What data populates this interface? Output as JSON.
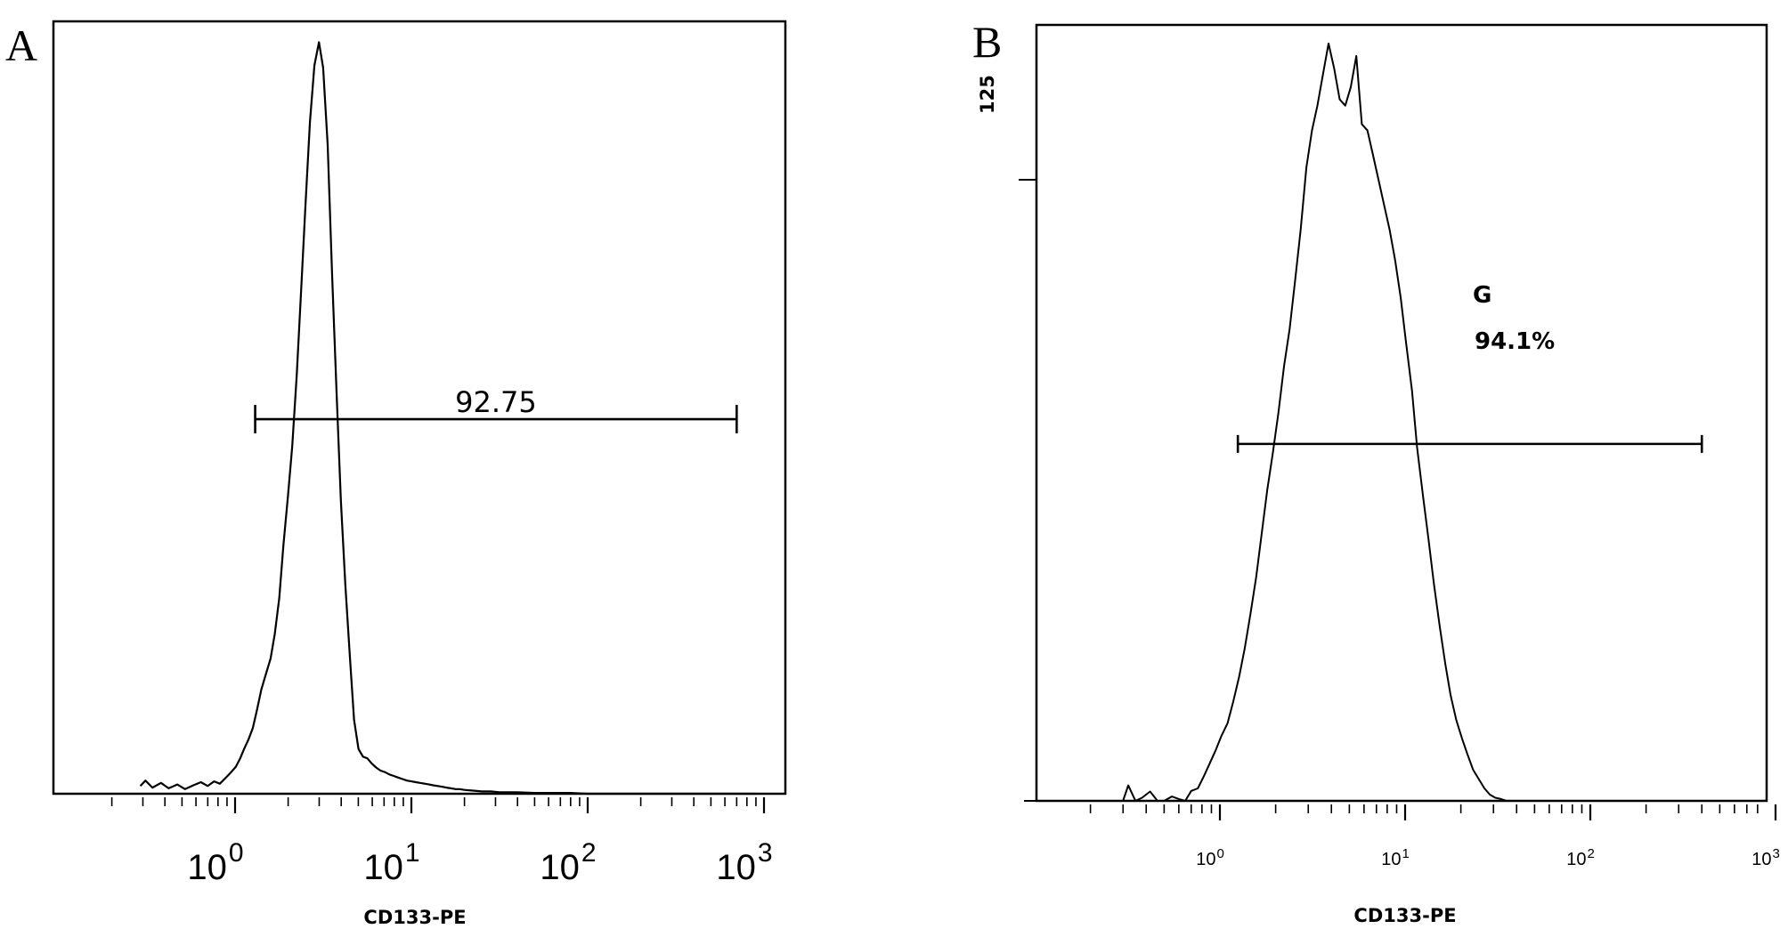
{
  "chart_data": [
    {
      "type": "line",
      "panel": "A",
      "title": "",
      "xlabel": "CD133-PE",
      "ylabel": "",
      "xscale": "log",
      "xlim": [
        0.1,
        1000
      ],
      "x_ticks": [
        1,
        10,
        100,
        1000
      ],
      "x_tick_labels": [
        {
          "base": "10",
          "exp": "0"
        },
        {
          "base": "10",
          "exp": "1"
        },
        {
          "base": "10",
          "exp": "2"
        },
        {
          "base": "10",
          "exp": "3"
        }
      ],
      "ylim": [
        0,
        100
      ],
      "y_tick_labels": [],
      "grid": false,
      "legend": "none",
      "series": [
        {
          "x": [
            0.29,
            0.31,
            0.34,
            0.38,
            0.42,
            0.47,
            0.52,
            0.58,
            0.64,
            0.7,
            0.76,
            0.82,
            0.88,
            0.95,
            1.01,
            1.07,
            1.13,
            1.19,
            1.26,
            1.33,
            1.41,
            1.5,
            1.59,
            1.68,
            1.78,
            1.88,
            2.0,
            2.11,
            2.24,
            2.37,
            2.51,
            2.66,
            2.82,
            2.99,
            3.16,
            3.35,
            3.55,
            3.76,
            3.98,
            4.22,
            4.47,
            4.73,
            5.01,
            5.31,
            5.62,
            5.96,
            6.31,
            6.68,
            7.08,
            7.5,
            7.94,
            8.41,
            8.91,
            9.44,
            10.0,
            10.6,
            11.2,
            11.9,
            12.6,
            13.3,
            14.1,
            15.0,
            15.8,
            16.8,
            17.8,
            18.8,
            20.0,
            22.4,
            25.1,
            28.2,
            31.6,
            40,
            50,
            63,
            80,
            100,
            200,
            400,
            900
          ],
          "y": [
            1.0,
            1.7,
            0.8,
            1.4,
            0.7,
            1.2,
            0.6,
            1.1,
            1.5,
            1.0,
            1.6,
            1.3,
            2.0,
            2.8,
            3.5,
            4.6,
            5.9,
            7.0,
            8.5,
            10.8,
            13.5,
            15.6,
            17.5,
            20.7,
            25.3,
            32.2,
            38.8,
            45.0,
            54.3,
            65.2,
            76.3,
            87.0,
            94.3,
            97.3,
            94.0,
            84.0,
            67.4,
            52.2,
            38.0,
            27.1,
            18.0,
            9.6,
            5.8,
            4.8,
            4.6,
            3.9,
            3.4,
            3.0,
            2.8,
            2.5,
            2.3,
            2.1,
            1.9,
            1.7,
            1.6,
            1.5,
            1.4,
            1.3,
            1.2,
            1.1,
            1.0,
            0.9,
            0.8,
            0.7,
            0.6,
            0.6,
            0.5,
            0.4,
            0.3,
            0.3,
            0.2,
            0.2,
            0.1,
            0.1,
            0.1,
            0,
            0,
            0,
            0
          ]
        }
      ],
      "annotations": [
        {
          "type": "gate",
          "x1": 1.3,
          "x2": 700,
          "y": 48.5,
          "label": "92.75"
        }
      ]
    },
    {
      "type": "line",
      "panel": "B",
      "title": "",
      "xlabel": "CD133-PE",
      "ylabel": "",
      "xscale": "log",
      "xlim": [
        0.1,
        1000
      ],
      "x_ticks": [
        1,
        10,
        100,
        1000
      ],
      "x_tick_labels": [
        {
          "base": "10",
          "exp": "0"
        },
        {
          "base": "10",
          "exp": "1"
        },
        {
          "base": "10",
          "exp": "2"
        },
        {
          "base": "10",
          "exp": "3"
        }
      ],
      "ylim": [
        0,
        125
      ],
      "y_tick_labels": [
        "125"
      ],
      "grid": false,
      "legend": "none",
      "series": [
        {
          "x": [
            0.3,
            0.32,
            0.35,
            0.38,
            0.42,
            0.46,
            0.5,
            0.55,
            0.6,
            0.65,
            0.7,
            0.76,
            0.82,
            0.88,
            0.95,
            1.02,
            1.1,
            1.18,
            1.27,
            1.36,
            1.46,
            1.57,
            1.68,
            1.8,
            1.93,
            2.07,
            2.22,
            2.38,
            2.55,
            2.73,
            2.93,
            3.14,
            3.36,
            3.6,
            3.86,
            4.14,
            4.43,
            4.75,
            5.09,
            5.45,
            5.84,
            6.26,
            6.71,
            7.19,
            7.7,
            8.25,
            8.84,
            9.47,
            10.1,
            10.9,
            11.6,
            12.5,
            13.4,
            14.3,
            15.4,
            16.5,
            17.6,
            18.9,
            20.3,
            21.7,
            23.3,
            25.0,
            26.8,
            28.7,
            30.7,
            32.9,
            35.3,
            40,
            50,
            100,
            1000
          ],
          "y": [
            0,
            2.5,
            0,
            0.5,
            1.5,
            0,
            0,
            0.7,
            0.3,
            0,
            1.6,
            2.0,
            4.0,
            6.0,
            8.2,
            10.5,
            12.5,
            16.0,
            20.0,
            24.5,
            30.0,
            36.0,
            43.0,
            50.0,
            56.0,
            62.5,
            70.0,
            76.0,
            84.0,
            92.0,
            102.0,
            108.0,
            112.0,
            117.0,
            122.0,
            118.0,
            113.0,
            112.0,
            115.0,
            120.0,
            109.0,
            108.0,
            104.0,
            100.0,
            96.0,
            92.0,
            87.0,
            81.0,
            74.0,
            66.0,
            57.0,
            49.0,
            42.0,
            35.0,
            28.0,
            22.0,
            17.0,
            13.0,
            10.0,
            7.5,
            5.0,
            3.5,
            2.0,
            1.0,
            0.5,
            0.3,
            0,
            0,
            0,
            0,
            0
          ]
        }
      ],
      "annotations": [
        {
          "type": "gate",
          "x1": 1.25,
          "x2": 400,
          "y": 57.5,
          "label_line1": "G",
          "label_line2": "94.1%"
        }
      ]
    }
  ]
}
